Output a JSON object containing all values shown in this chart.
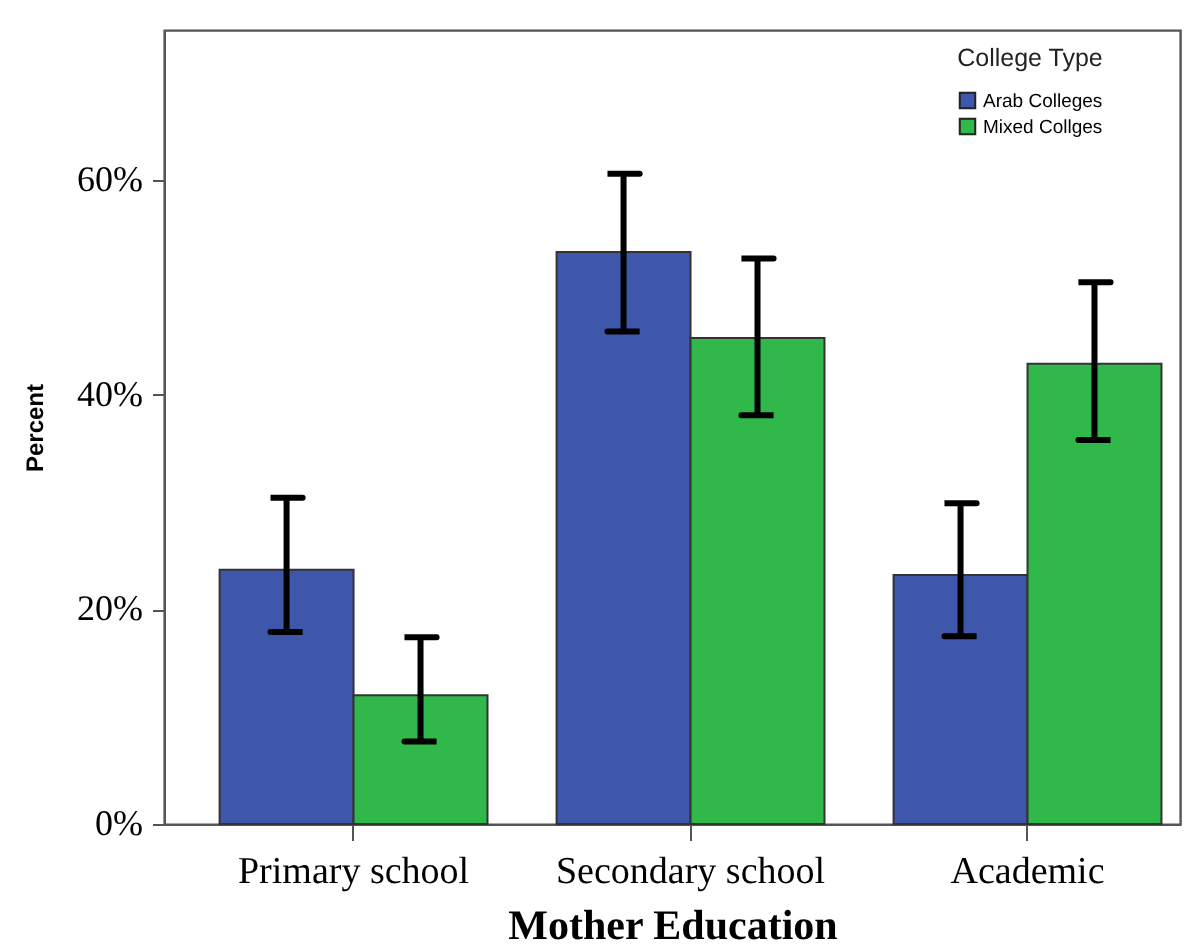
{
  "chart_data": {
    "type": "bar",
    "xlabel": "Mother Education",
    "ylabel": "Percent",
    "legend_title": "College Type",
    "categories": [
      "Primary school",
      "Secondary school",
      "Academic"
    ],
    "series": [
      {
        "name": "Arab Colleges",
        "color": "#3e57aa",
        "values": [
          23.7,
          53.3,
          23.2
        ],
        "errors": [
          [
            17.9,
            30.4
          ],
          [
            45.9,
            60.6
          ],
          [
            17.5,
            29.9
          ]
        ]
      },
      {
        "name": "Mixed Collges",
        "color": "#30b84a",
        "values": [
          12.0,
          45.3,
          42.9
        ],
        "errors": [
          [
            7.7,
            17.4
          ],
          [
            38.1,
            52.7
          ],
          [
            35.8,
            50.5
          ]
        ]
      }
    ],
    "ylim": [
      0,
      74
    ],
    "yticks": [
      {
        "value": 0,
        "label": "0%"
      },
      {
        "value": 20,
        "label": "20%"
      },
      {
        "value": 40,
        "label": "40%"
      },
      {
        "value": 60,
        "label": "60%"
      }
    ],
    "legend": "top right"
  }
}
